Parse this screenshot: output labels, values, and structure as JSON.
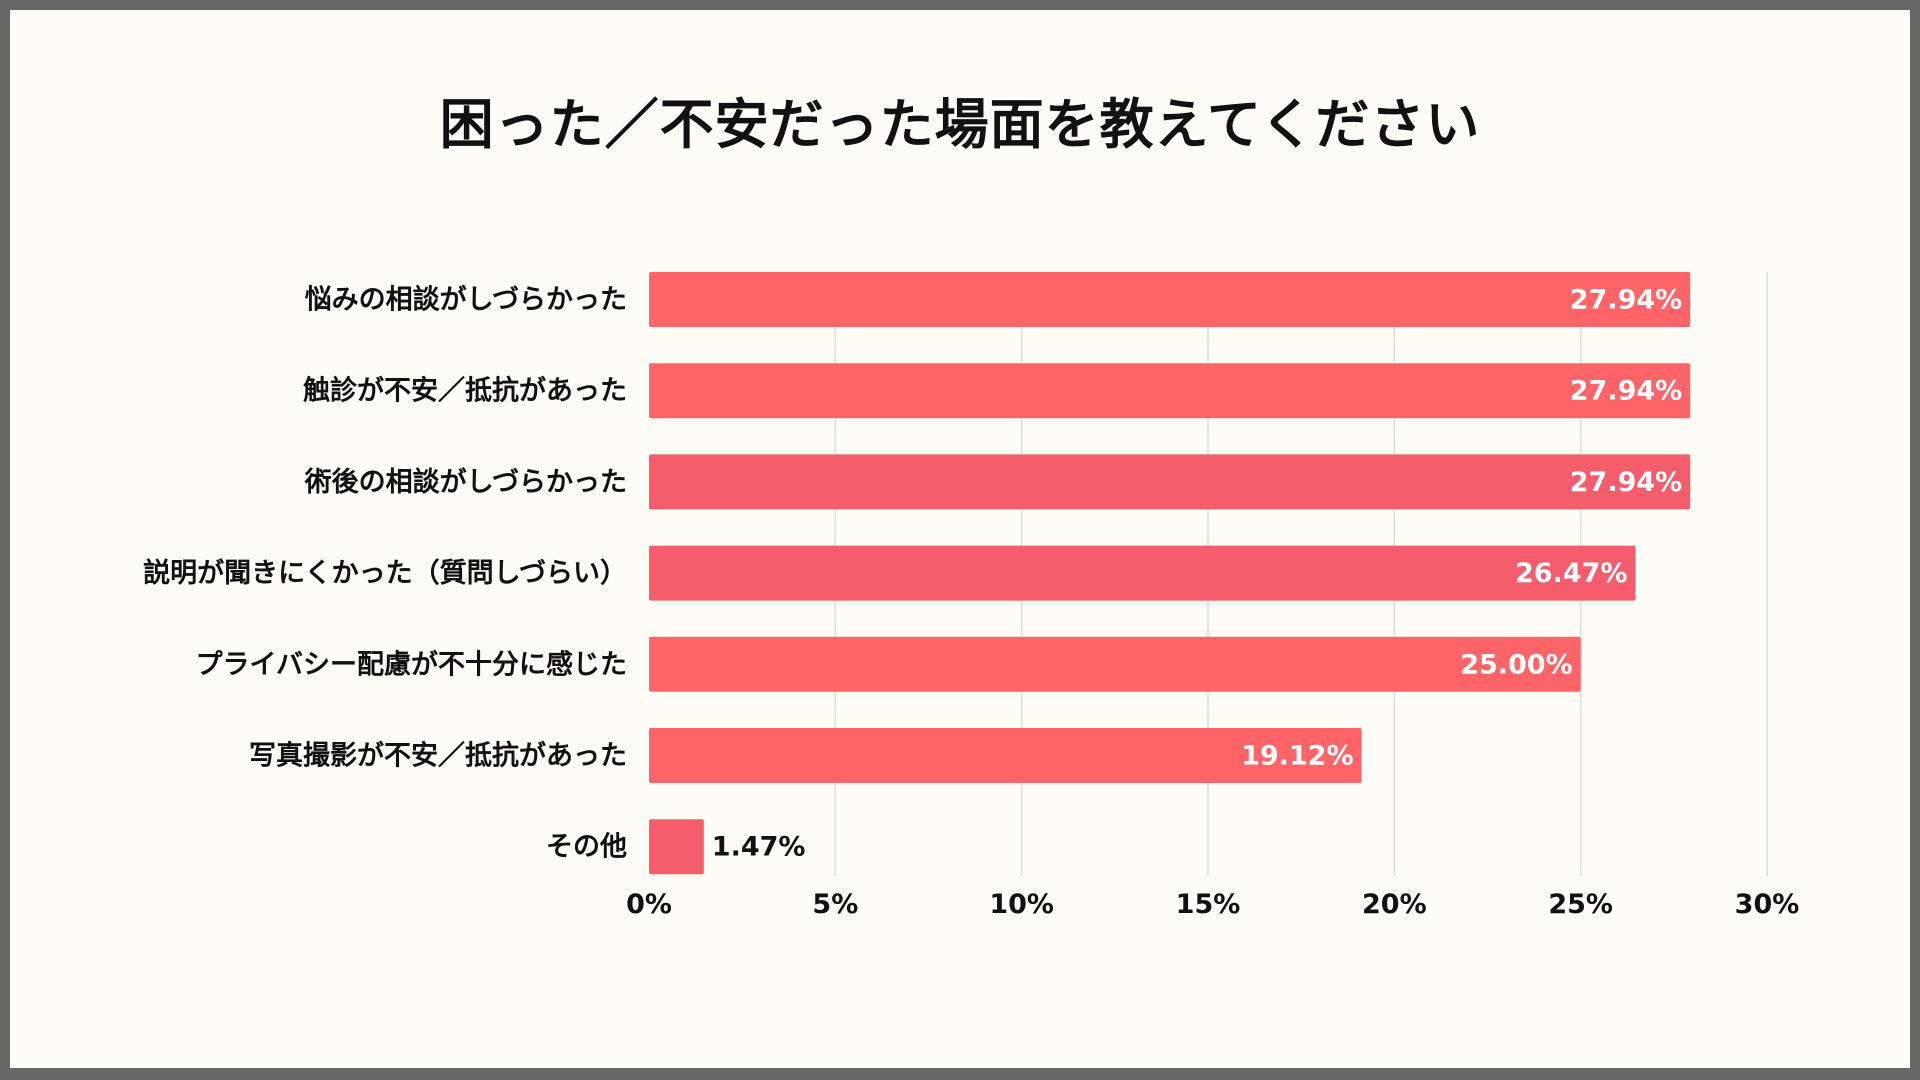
{
  "chart_data": {
    "type": "bar",
    "orientation": "horizontal",
    "title": "困った／不安だった場面を教えてください",
    "categories": [
      "悩みの相談がしづらかった",
      "触診が不安／抵抗があった",
      "術後の相談がしづらかった",
      "説明が聞きにくかった（質問しづらい）",
      "プライバシー配慮が不十分に感じた",
      "写真撮影が不安／抵抗があった",
      "その他"
    ],
    "values": [
      27.94,
      27.94,
      27.94,
      26.47,
      25.0,
      19.12,
      1.47
    ],
    "value_labels": [
      "27.94%",
      "27.94%",
      "27.94%",
      "26.47%",
      "25.00%",
      "19.12%",
      "1.47%"
    ],
    "bar_colors": [
      "#ff6468",
      "#ff6468",
      "#f65d6c",
      "#f65d6c",
      "#ff6468",
      "#ff6468",
      "#f65d6c"
    ],
    "x_ticks": [
      0,
      5,
      10,
      15,
      20,
      25,
      30
    ],
    "x_tick_labels": [
      "0%",
      "5%",
      "10%",
      "15%",
      "20%",
      "25%",
      "30%"
    ],
    "xlim": [
      0,
      30
    ],
    "xlabel": "",
    "ylabel": "",
    "grid": true
  }
}
